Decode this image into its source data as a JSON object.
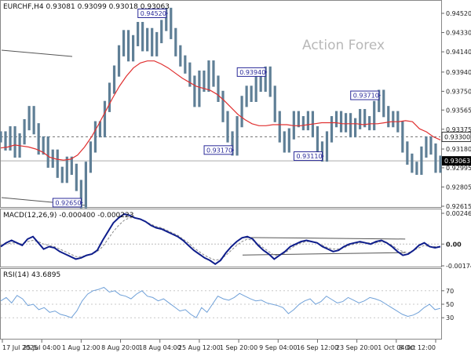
{
  "header": {
    "main_label": "EURCHF,H4  0.93081 0.93099 0.93018 0.93063",
    "macd_label": "MACD(12,26,9) -0.000400 -0.000223",
    "rsi_label": "RSI(14) 43.6895"
  },
  "watermark": "Action Forex",
  "colors": {
    "price": "#5f7f96",
    "ma": "#e03030",
    "macd_main": "#0f1e8c",
    "macd_signal": "#8a8a8a",
    "rsi": "#6fa0d8",
    "callout": "#2a2a99",
    "grid": "#d9d9d9",
    "trendline": "#555555",
    "watermark": "#b8b8b8",
    "current_price_box": "#000000"
  },
  "chart_data": [
    {
      "type": "line",
      "name": "price_panel",
      "x_tick_labels": [
        "17 Jul 2025",
        "25 Jul 04:00",
        "1 Aug 12:00",
        "8 Aug 20:00",
        "18 Aug 04:00",
        "25 Aug 12:00",
        "1 Sep 20:00",
        "9 Sep 04:00",
        "16 Sep 12:00",
        "23 Sep 20:00",
        "1 Oct 04:00",
        "8 Oct 12:00"
      ],
      "y_tick_labels": [
        "0.94520",
        "0.94330",
        "0.94140",
        "0.93940",
        "0.93750",
        "0.93565",
        "0.93375",
        "0.93180",
        "0.92995",
        "0.92805",
        "0.92615"
      ],
      "ylim": [
        0.92615,
        0.9452
      ],
      "series_close": [
        0.933,
        0.9322,
        0.9335,
        0.9315,
        0.9328,
        0.9342,
        0.9355,
        0.9338,
        0.9318,
        0.9325,
        0.9305,
        0.9312,
        0.9295,
        0.929,
        0.9305,
        0.9298,
        0.9282,
        0.9265,
        0.93,
        0.932,
        0.934,
        0.9335,
        0.936,
        0.9378,
        0.9395,
        0.9415,
        0.943,
        0.941,
        0.9425,
        0.9438,
        0.942,
        0.9432,
        0.9415,
        0.9428,
        0.944,
        0.9452,
        0.9432,
        0.9415,
        0.9405,
        0.9398,
        0.9385,
        0.9365,
        0.939,
        0.938,
        0.94,
        0.9385,
        0.937,
        0.935,
        0.933,
        0.9317,
        0.9345,
        0.9365,
        0.9375,
        0.937,
        0.9385,
        0.938,
        0.9394,
        0.9375,
        0.935,
        0.933,
        0.932,
        0.9333,
        0.935,
        0.9345,
        0.9342,
        0.935,
        0.9335,
        0.932,
        0.9311,
        0.933,
        0.9345,
        0.935,
        0.934,
        0.9348,
        0.9335,
        0.9343,
        0.9352,
        0.9345,
        0.9342,
        0.936,
        0.9371,
        0.9355,
        0.9345,
        0.935,
        0.934,
        0.932,
        0.9308,
        0.93,
        0.9298,
        0.9315,
        0.9325,
        0.9318,
        0.93,
        0.9306
      ],
      "series_ma": [
        0.9319,
        0.932,
        0.9322,
        0.9321,
        0.932,
        0.9318,
        0.9315,
        0.931,
        0.9308,
        0.9307,
        0.9308,
        0.9312,
        0.932,
        0.933,
        0.9342,
        0.9355,
        0.9368,
        0.938,
        0.939,
        0.9398,
        0.9403,
        0.9405,
        0.9405,
        0.9402,
        0.9398,
        0.9393,
        0.9388,
        0.9384,
        0.938,
        0.9378,
        0.9376,
        0.9372,
        0.9366,
        0.9359,
        0.9352,
        0.9347,
        0.9343,
        0.9341,
        0.9341,
        0.9342,
        0.9342,
        0.9342,
        0.9341,
        0.9341,
        0.9342,
        0.9343,
        0.9344,
        0.9344,
        0.9344,
        0.9343,
        0.9343,
        0.9343,
        0.9342,
        0.9343,
        0.9343,
        0.9344,
        0.9345,
        0.9345,
        0.9346,
        0.9345,
        0.9338,
        0.9335,
        0.933,
        0.9327
      ],
      "callouts": [
        {
          "label": "0.94520",
          "x_index": 35,
          "y": 0.9452
        },
        {
          "label": "0.93940",
          "x_index": 56,
          "y": 0.9394
        },
        {
          "label": "0.93710",
          "x_index": 80,
          "y": 0.9371
        },
        {
          "label": "0.93170",
          "x_index": 49,
          "y": 0.9317
        },
        {
          "label": "0.93110",
          "x_index": 68,
          "y": 0.9311
        },
        {
          "label": "0.92650",
          "x_index": 17,
          "y": 0.9265
        }
      ],
      "horizontal_levels": [
        {
          "label": "0.93300",
          "y": 0.933,
          "style": "dashed"
        },
        {
          "label": "0.93063",
          "y": 0.93063,
          "style": "current"
        }
      ]
    },
    {
      "type": "line",
      "name": "macd_panel",
      "y_tick_labels": [
        "0.002463",
        "0.00",
        "-0.00174"
      ],
      "ylim": [
        -0.00174,
        0.002463
      ],
      "series": [
        {
          "name": "MACD(12,26,9)",
          "values": [
            -0.0002,
            0.0001,
            0.0003,
            0.0001,
            -0.0001,
            0.0004,
            0.0006,
            0.0001,
            -0.0004,
            -0.0002,
            -0.0003,
            -0.0006,
            -0.0008,
            -0.001,
            -0.0012,
            -0.0011,
            -0.0009,
            -0.0008,
            -0.0005,
            0.0003,
            0.001,
            0.0017,
            0.0021,
            0.0024,
            0.0023,
            0.0021,
            0.002,
            0.0018,
            0.0015,
            0.0013,
            0.0012,
            0.001,
            0.0008,
            0.0006,
            0.0003,
            -0.0001,
            -0.0005,
            -0.0008,
            -0.0011,
            -0.0013,
            -0.0016,
            -0.0013,
            -0.0007,
            -0.0002,
            0.0002,
            0.0005,
            0.0006,
            0.0004,
            -0.0001,
            -0.0005,
            -0.0008,
            -0.0012,
            -0.0009,
            -0.0006,
            -0.0002,
            0.0,
            0.0002,
            0.0003,
            0.0002,
            0.0001,
            -0.0002,
            -0.0004,
            -0.0006,
            -0.0005,
            -0.0002,
            0.0,
            0.0001,
            0.0002,
            0.0001,
            0.0,
            0.0002,
            0.0003,
            0.0001,
            -0.0002,
            -0.0006,
            -0.0009,
            -0.0008,
            -0.0005,
            -0.0001,
            0.0001,
            -0.0002,
            -0.0003,
            -0.0002
          ]
        },
        {
          "name": "signal",
          "values": [
            -0.0001,
            0.0,
            0.0001,
            0.0001,
            0.0,
            0.0002,
            0.0003,
            0.0002,
            0.0,
            -0.0001,
            -0.0002,
            -0.0004,
            -0.0006,
            -0.0008,
            -0.001,
            -0.001,
            -0.0009,
            -0.0008,
            -0.0006,
            -0.0002,
            0.0004,
            0.001,
            0.0015,
            0.0019,
            0.0021,
            0.0021,
            0.002,
            0.0018,
            0.0016,
            0.0014,
            0.0013,
            0.0011,
            0.0009,
            0.0007,
            0.0004,
            0.0001,
            -0.0003,
            -0.0006,
            -0.0009,
            -0.0011,
            -0.0013,
            -0.0012,
            -0.0009,
            -0.0005,
            -0.0001,
            0.0002,
            0.0004,
            0.0003,
            0.0,
            -0.0003,
            -0.0006,
            -0.0009,
            -0.0009,
            -0.0007,
            -0.0004,
            -0.0001,
            0.0001,
            0.0002,
            0.0002,
            0.0001,
            -0.0001,
            -0.0003,
            -0.0004,
            -0.0004,
            -0.0003,
            -0.0001,
            0.0,
            0.0001,
            0.0001,
            0.0001,
            0.0001,
            0.0002,
            0.0001,
            -0.0001,
            -0.0004,
            -0.0006,
            -0.0007,
            -0.0005,
            -0.0003,
            -0.0001,
            -0.0002,
            -0.0002,
            -0.0002
          ]
        }
      ],
      "trendlines": [
        {
          "from": [
            0.55,
            0.00053
          ],
          "to": [
            0.92,
            0.0004
          ]
        },
        {
          "from": [
            0.55,
            -0.00088
          ],
          "to": [
            0.92,
            -0.00068
          ]
        }
      ]
    },
    {
      "type": "line",
      "name": "rsi_panel",
      "y_tick_labels": [
        "70",
        "50",
        "30"
      ],
      "ylim": [
        0,
        100
      ],
      "series": [
        {
          "name": "RSI(14)",
          "values": [
            55,
            60,
            52,
            63,
            58,
            48,
            50,
            42,
            45,
            38,
            40,
            35,
            33,
            30,
            40,
            55,
            65,
            70,
            72,
            75,
            68,
            70,
            64,
            62,
            58,
            65,
            70,
            62,
            60,
            55,
            58,
            52,
            46,
            40,
            42,
            35,
            30,
            45,
            38,
            50,
            62,
            58,
            56,
            60,
            66,
            62,
            58,
            55,
            56,
            52,
            50,
            48,
            45,
            36,
            42,
            50,
            55,
            58,
            50,
            54,
            62,
            57,
            52,
            54,
            60,
            56,
            52,
            55,
            60,
            58,
            55,
            50,
            45,
            40,
            35,
            32,
            34,
            38,
            45,
            50,
            42,
            44
          ]
        }
      ],
      "levels": [
        70,
        50,
        30
      ]
    }
  ]
}
